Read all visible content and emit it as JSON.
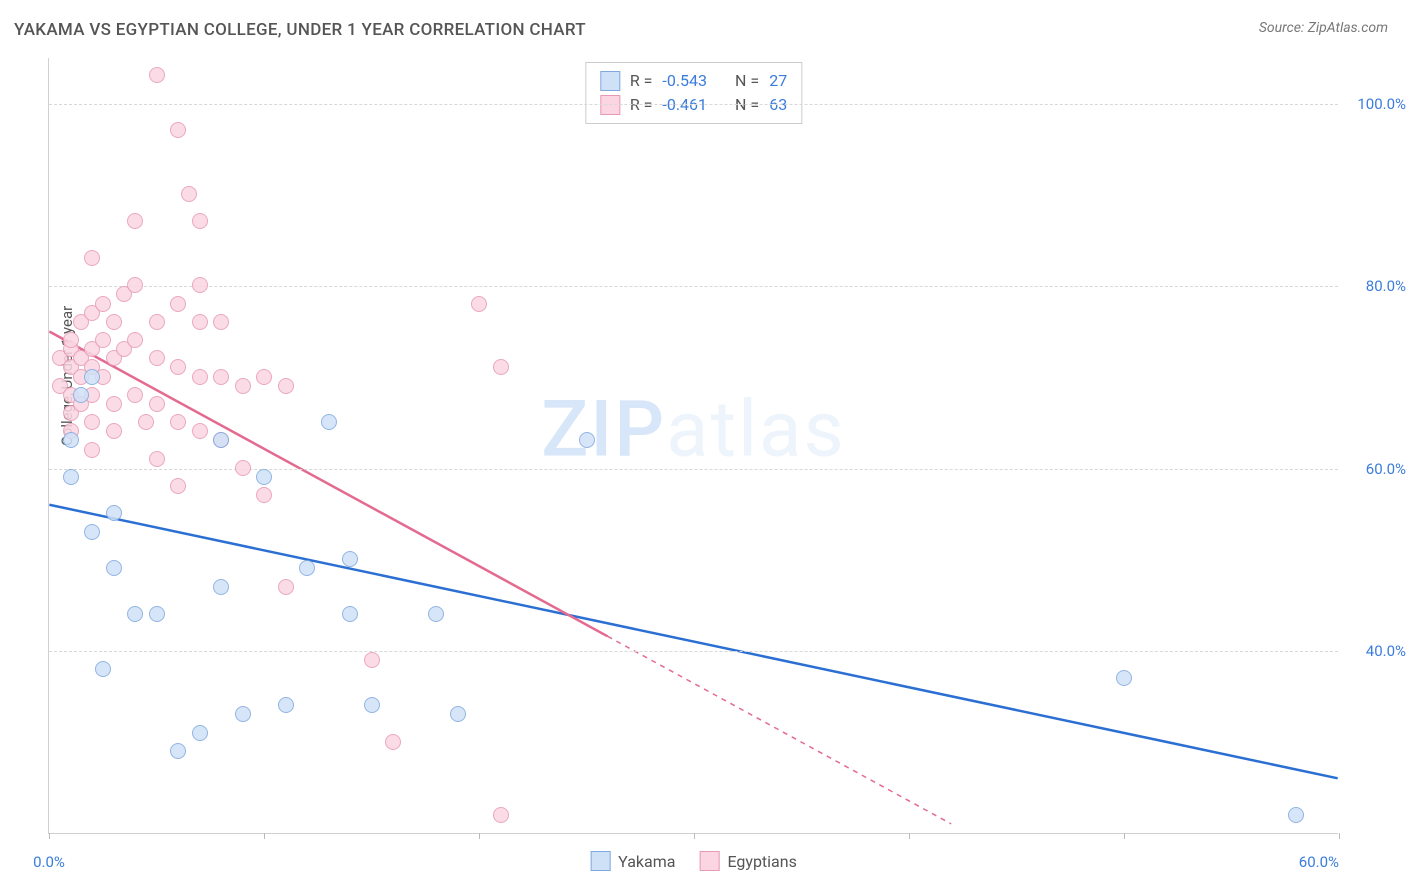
{
  "title": "YAKAMA VS EGYPTIAN COLLEGE, UNDER 1 YEAR CORRELATION CHART",
  "source_label": "Source: ",
  "source_name": "ZipAtlas.com",
  "y_axis_label": "College, Under 1 year",
  "watermark_bold": "ZIP",
  "watermark_rest": "atlas",
  "chart": {
    "type": "scatter",
    "xlim": [
      0,
      60
    ],
    "ylim": [
      20,
      105
    ],
    "x_ticks": [
      0,
      10,
      20,
      30,
      40,
      50,
      60
    ],
    "x_tick_labels": {
      "0": "0.0%",
      "60": "60.0%"
    },
    "y_ticks": [
      40,
      60,
      80,
      100
    ],
    "y_tick_labels": {
      "40": "40.0%",
      "60": "60.0%",
      "80": "80.0%",
      "100": "100.0%"
    },
    "background_color": "#ffffff",
    "grid_color": "#d8d8d8",
    "axis_color": "#d0d0d0",
    "tick_label_color": "#3b7ddb",
    "marker_radius": 8,
    "marker_stroke_width": 1.2,
    "series": [
      {
        "name": "Yakama",
        "fill": "#cfe1f7",
        "stroke": "#7fa9de",
        "line_color": "#2b6fd3",
        "R": "-0.543",
        "N": "27",
        "regression": {
          "x1": 0,
          "y1": 56,
          "x2": 60,
          "y2": 26,
          "dashed_after_x": null
        },
        "points": [
          [
            1,
            63
          ],
          [
            1,
            59
          ],
          [
            1.5,
            68
          ],
          [
            2,
            70
          ],
          [
            2,
            53
          ],
          [
            3,
            55
          ],
          [
            3,
            49
          ],
          [
            2.5,
            38
          ],
          [
            4,
            44
          ],
          [
            5,
            44
          ],
          [
            6,
            29
          ],
          [
            7,
            31
          ],
          [
            8,
            63
          ],
          [
            8,
            47
          ],
          [
            9,
            33
          ],
          [
            10,
            59
          ],
          [
            11,
            34
          ],
          [
            12,
            49
          ],
          [
            13,
            65
          ],
          [
            14,
            50
          ],
          [
            14,
            44
          ],
          [
            15,
            34
          ],
          [
            18,
            44
          ],
          [
            19,
            33
          ],
          [
            25,
            63
          ],
          [
            50,
            37
          ],
          [
            58,
            22
          ]
        ]
      },
      {
        "name": "Egyptians",
        "fill": "#fbd5e2",
        "stroke": "#e69ab3",
        "line_color": "#e46a90",
        "R": "-0.461",
        "N": "63",
        "regression": {
          "x1": 0,
          "y1": 75,
          "x2": 42,
          "y2": 21,
          "dashed_after_x": 26
        },
        "points": [
          [
            0.5,
            72
          ],
          [
            0.5,
            69
          ],
          [
            1,
            73
          ],
          [
            1,
            74
          ],
          [
            1,
            71
          ],
          [
            1,
            68
          ],
          [
            1,
            66
          ],
          [
            1,
            64
          ],
          [
            1.5,
            76
          ],
          [
            1.5,
            72
          ],
          [
            1.5,
            70
          ],
          [
            1.5,
            67
          ],
          [
            2,
            83
          ],
          [
            2,
            77
          ],
          [
            2,
            73
          ],
          [
            2,
            71
          ],
          [
            2,
            68
          ],
          [
            2,
            65
          ],
          [
            2,
            62
          ],
          [
            2.5,
            78
          ],
          [
            2.5,
            74
          ],
          [
            2.5,
            70
          ],
          [
            3,
            76
          ],
          [
            3,
            72
          ],
          [
            3,
            67
          ],
          [
            3,
            64
          ],
          [
            3.5,
            79
          ],
          [
            3.5,
            73
          ],
          [
            4,
            87
          ],
          [
            4,
            80
          ],
          [
            4,
            74
          ],
          [
            4,
            68
          ],
          [
            4.5,
            65
          ],
          [
            5,
            103
          ],
          [
            5,
            76
          ],
          [
            5,
            72
          ],
          [
            5,
            67
          ],
          [
            5,
            61
          ],
          [
            6,
            97
          ],
          [
            6,
            78
          ],
          [
            6,
            71
          ],
          [
            6,
            65
          ],
          [
            6,
            58
          ],
          [
            6.5,
            90
          ],
          [
            7,
            87
          ],
          [
            7,
            80
          ],
          [
            7,
            76
          ],
          [
            7,
            70
          ],
          [
            7,
            64
          ],
          [
            8,
            76
          ],
          [
            8,
            70
          ],
          [
            8,
            63
          ],
          [
            9,
            69
          ],
          [
            9,
            60
          ],
          [
            10,
            70
          ],
          [
            10,
            57
          ],
          [
            11,
            69
          ],
          [
            11,
            47
          ],
          [
            15,
            39
          ],
          [
            16,
            30
          ],
          [
            20,
            78
          ],
          [
            21,
            71
          ],
          [
            21,
            22
          ]
        ]
      }
    ]
  },
  "stats_legend": {
    "R_label": "R =",
    "N_label": "N ="
  }
}
